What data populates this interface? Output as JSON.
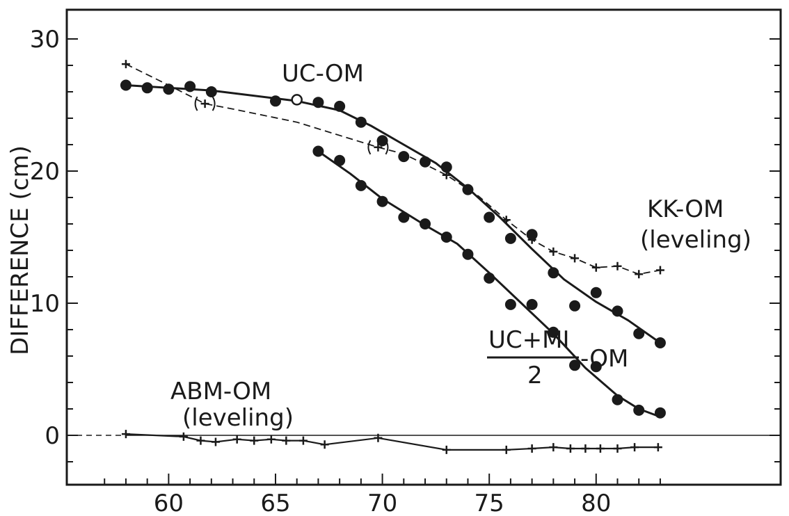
{
  "chart_data": {
    "type": "scatter",
    "ylabel": "DIFFERENCE (cm)",
    "xlabel": "",
    "xlim": [
      56,
      84
    ],
    "ylim": [
      -4,
      32
    ],
    "x_ticks": [
      60,
      65,
      70,
      75,
      80
    ],
    "y_ticks": [
      0,
      10,
      20,
      30
    ],
    "annotations": {
      "uc_om": "UC-OM",
      "kk_om_1": "KK-OM",
      "kk_om_2": "(leveling)",
      "mid_num": "UC+MI",
      "mid_den": "2",
      "mid_suffix": "-OM",
      "abm_1": "ABM-OM",
      "abm_2": "(leveling)"
    },
    "series": [
      {
        "name": "UC-OM",
        "marker": "filled-circle",
        "points": [
          [
            58,
            26.5
          ],
          [
            59,
            26.3
          ],
          [
            60,
            26.2
          ],
          [
            61,
            26.4
          ],
          [
            62,
            26
          ],
          [
            65,
            25.3
          ],
          [
            67,
            25.2
          ],
          [
            68,
            24.9
          ],
          [
            69,
            23.7
          ],
          [
            70,
            22.3
          ],
          [
            71,
            21.1
          ],
          [
            72,
            20.7
          ],
          [
            73,
            20.3
          ],
          [
            74,
            18.6
          ],
          [
            75,
            16.5
          ],
          [
            76,
            14.9
          ],
          [
            77,
            15.2
          ],
          [
            78,
            12.3
          ],
          [
            79,
            9.8
          ],
          [
            80,
            10.8
          ],
          [
            81,
            9.4
          ],
          [
            82,
            7.7
          ],
          [
            83,
            7
          ]
        ],
        "open_points": [
          [
            66,
            25.4
          ]
        ],
        "curve": [
          [
            58,
            26.5
          ],
          [
            62,
            26.1
          ],
          [
            66,
            25.3
          ],
          [
            68,
            24.6
          ],
          [
            69.5,
            23.4
          ],
          [
            71,
            22
          ],
          [
            72.5,
            20.6
          ],
          [
            74,
            18.7
          ],
          [
            75.5,
            16.5
          ],
          [
            77,
            14.1
          ],
          [
            78.5,
            11.8
          ],
          [
            80,
            10.1
          ],
          [
            81.5,
            8.7
          ],
          [
            83,
            7
          ]
        ]
      },
      {
        "name": "(UC+MI)/2-OM",
        "marker": "filled-circle",
        "points": [
          [
            67,
            21.5
          ],
          [
            68,
            20.8
          ],
          [
            69,
            18.9
          ],
          [
            70,
            17.7
          ],
          [
            71,
            16.5
          ],
          [
            72,
            16
          ],
          [
            73,
            15
          ],
          [
            74,
            13.7
          ],
          [
            75,
            11.9
          ],
          [
            76,
            9.9
          ],
          [
            77,
            9.9
          ],
          [
            78,
            7.8
          ],
          [
            79,
            5.3
          ],
          [
            80,
            5.2
          ],
          [
            81,
            2.7
          ],
          [
            82,
            1.9
          ],
          [
            83,
            1.7
          ]
        ],
        "curve": [
          [
            67,
            21.5
          ],
          [
            68.5,
            19.8
          ],
          [
            70,
            17.9
          ],
          [
            72,
            15.9
          ],
          [
            73.5,
            14.5
          ],
          [
            75,
            12.3
          ],
          [
            76.5,
            10
          ],
          [
            78,
            7.7
          ],
          [
            79.5,
            5.1
          ],
          [
            81,
            3
          ],
          [
            82,
            2
          ],
          [
            83,
            1.4
          ]
        ]
      },
      {
        "name": "KK-OM (leveling)",
        "marker": "plus",
        "points": [
          [
            58,
            28.1
          ],
          [
            61.7,
            25.1
          ],
          [
            69.8,
            21.8
          ],
          [
            73,
            19.7
          ],
          [
            75.8,
            16.3
          ],
          [
            77,
            14.8
          ],
          [
            78,
            13.9
          ],
          [
            79,
            13.4
          ],
          [
            80,
            12.7
          ],
          [
            81,
            12.8
          ],
          [
            82,
            12.2
          ],
          [
            83,
            12.5
          ]
        ],
        "bracketed_points": [
          [
            61.7,
            25.1
          ],
          [
            69.8,
            21.8
          ]
        ],
        "connector": [
          [
            58,
            28.1
          ],
          [
            60,
            26.5
          ],
          [
            61.7,
            25.1
          ],
          [
            63,
            24.7
          ],
          [
            66,
            23.7
          ],
          [
            69.8,
            21.8
          ],
          [
            71,
            21.3
          ],
          [
            73,
            19.7
          ],
          [
            74.5,
            18.1
          ],
          [
            75.8,
            16.3
          ],
          [
            77,
            14.8
          ],
          [
            78,
            13.9
          ],
          [
            79,
            13.4
          ],
          [
            80,
            12.7
          ],
          [
            81,
            12.8
          ],
          [
            82,
            12.2
          ],
          [
            83,
            12.5
          ]
        ]
      },
      {
        "name": "ABM-OM (leveling)",
        "marker": "plus",
        "points": [
          [
            58,
            0.1
          ],
          [
            60.7,
            -0.1
          ],
          [
            61.5,
            -0.4
          ],
          [
            62.2,
            -0.5
          ],
          [
            63.2,
            -0.3
          ],
          [
            64,
            -0.4
          ],
          [
            64.8,
            -0.3
          ],
          [
            65.5,
            -0.4
          ],
          [
            66.3,
            -0.4
          ],
          [
            67.3,
            -0.7
          ],
          [
            69.8,
            -0.2
          ],
          [
            73,
            -1.1
          ],
          [
            75.8,
            -1.1
          ],
          [
            77,
            -1
          ],
          [
            78,
            -0.9
          ],
          [
            78.8,
            -1
          ],
          [
            79.5,
            -1
          ],
          [
            80.2,
            -1
          ],
          [
            81,
            -1
          ],
          [
            81.8,
            -0.9
          ],
          [
            82.9,
            -0.9
          ]
        ]
      }
    ],
    "reference_line": 0
  }
}
